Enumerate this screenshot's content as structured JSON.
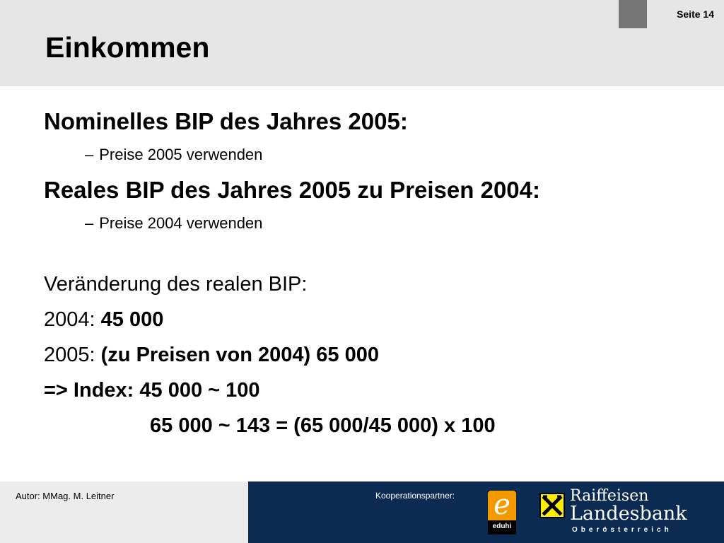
{
  "header": {
    "title": "Einkommen",
    "page_label": "Seite 14"
  },
  "content": {
    "heading1": "Nominelles BIP des Jahres 2005:",
    "sub1_dash": "–",
    "sub1": "Preise 2005 verwenden",
    "heading2": "Reales BIP des Jahres 2005 zu Preisen 2004:",
    "sub2_dash": "–",
    "sub2": "Preise 2004 verwenden",
    "change_label": "Veränderung des realen BIP:",
    "year2004_label": "2004:",
    "year2004_value": "45 000",
    "year2005_label": "2005:",
    "year2005_value": "(zu Preisen von 2004) 65 000",
    "index_line": "=> Index: 45 000 ~ 100",
    "calc_line": "65 000 ~ 143 = (65 000/45 000) x 100"
  },
  "footer": {
    "author": "Autor: MMag. M. Leitner",
    "partner_label": "Kooperationspartner:",
    "eduhi_letter": "e",
    "eduhi_label": "eduhi",
    "bank_line1": "Raiffeisen",
    "bank_line2": "Landesbank",
    "bank_line3": "Oberösterreich"
  },
  "colors": {
    "header_bg": "#e6e6e6",
    "footer_dark": "#0c2b52",
    "eduhi_orange": "#f39a00",
    "raiffeisen_yellow": "#ffed00"
  }
}
